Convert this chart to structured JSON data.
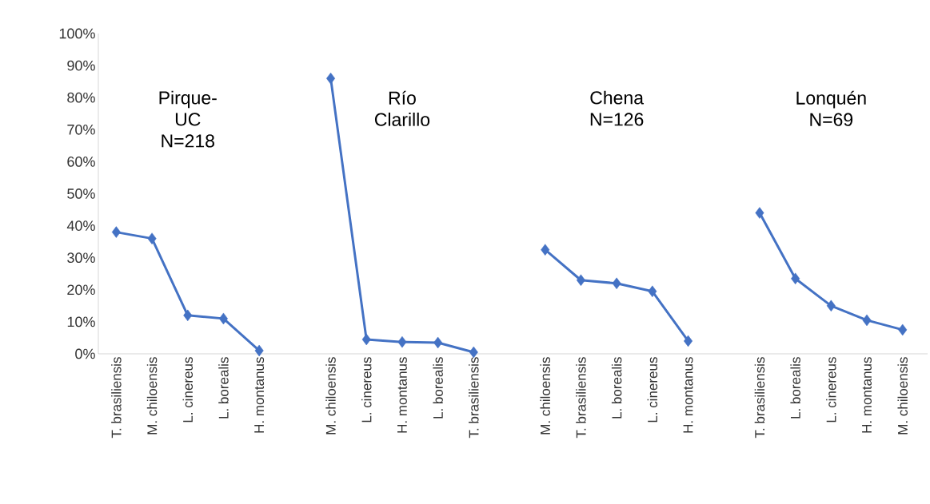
{
  "chart_data": {
    "type": "line",
    "categories": [
      "T. brasiliensis",
      "M. chiloensis",
      "L. cinereus",
      "L. borealis",
      "H. montanus",
      null,
      "M. chiloensis",
      "L. cinereus",
      "H. montanus",
      "L. borealis",
      "T. brasiliensis",
      null,
      "M. chiloensis",
      "T. brasiliensis",
      "L. borealis",
      "L. cinereus",
      "H. montanus",
      null,
      "T. brasiliensis",
      "L. borealis",
      "L. cinereus",
      "H. montanus",
      "M. chiloensis"
    ],
    "values": [
      38,
      36,
      12,
      11,
      1,
      null,
      86,
      4.5,
      3.7,
      3.5,
      0.5,
      null,
      32.5,
      23,
      22,
      19.5,
      4,
      null,
      44,
      23.5,
      15,
      10.5,
      7.5
    ],
    "color": "#4472c4",
    "marker": "diamond",
    "ylim": [
      0,
      100
    ],
    "yticks": [
      {
        "value": 0,
        "label": "0%"
      },
      {
        "value": 10,
        "label": "10%"
      },
      {
        "value": 20,
        "label": "20%"
      },
      {
        "value": 30,
        "label": "30%"
      },
      {
        "value": 40,
        "label": "40%"
      },
      {
        "value": 50,
        "label": "50%"
      },
      {
        "value": 60,
        "label": "60%"
      },
      {
        "value": 70,
        "label": "70%"
      },
      {
        "value": 80,
        "label": "80%"
      },
      {
        "value": 90,
        "label": "90%"
      },
      {
        "value": 100,
        "label": "100%"
      }
    ],
    "annotations": [
      "Pirque-UC N=218",
      "Río Clarillo",
      "Chena N=126",
      "Lonquén N=69"
    ]
  }
}
